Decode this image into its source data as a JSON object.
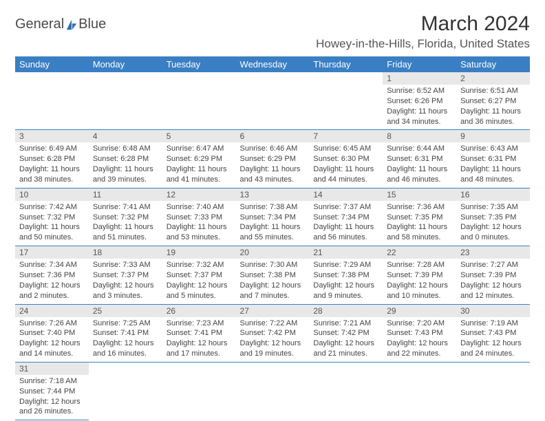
{
  "logo": {
    "text1": "General",
    "text2": "Blue",
    "sail_color": "#2f6fb3"
  },
  "title": "March 2024",
  "location": "Howey-in-the-Hills, Florida, United States",
  "colors": {
    "header_bg": "#3a7fc4",
    "header_fg": "#ffffff",
    "daynum_bg": "#e8e8e8",
    "rule": "#3a7fc4"
  },
  "weekdays": [
    "Sunday",
    "Monday",
    "Tuesday",
    "Wednesday",
    "Thursday",
    "Friday",
    "Saturday"
  ],
  "grid_start_weekday": 5,
  "days": [
    {
      "n": 1,
      "sr": "6:52 AM",
      "ss": "6:26 PM",
      "dl": "11 hours and 34 minutes."
    },
    {
      "n": 2,
      "sr": "6:51 AM",
      "ss": "6:27 PM",
      "dl": "11 hours and 36 minutes."
    },
    {
      "n": 3,
      "sr": "6:49 AM",
      "ss": "6:28 PM",
      "dl": "11 hours and 38 minutes."
    },
    {
      "n": 4,
      "sr": "6:48 AM",
      "ss": "6:28 PM",
      "dl": "11 hours and 39 minutes."
    },
    {
      "n": 5,
      "sr": "6:47 AM",
      "ss": "6:29 PM",
      "dl": "11 hours and 41 minutes."
    },
    {
      "n": 6,
      "sr": "6:46 AM",
      "ss": "6:29 PM",
      "dl": "11 hours and 43 minutes."
    },
    {
      "n": 7,
      "sr": "6:45 AM",
      "ss": "6:30 PM",
      "dl": "11 hours and 44 minutes."
    },
    {
      "n": 8,
      "sr": "6:44 AM",
      "ss": "6:31 PM",
      "dl": "11 hours and 46 minutes."
    },
    {
      "n": 9,
      "sr": "6:43 AM",
      "ss": "6:31 PM",
      "dl": "11 hours and 48 minutes."
    },
    {
      "n": 10,
      "sr": "7:42 AM",
      "ss": "7:32 PM",
      "dl": "11 hours and 50 minutes."
    },
    {
      "n": 11,
      "sr": "7:41 AM",
      "ss": "7:32 PM",
      "dl": "11 hours and 51 minutes."
    },
    {
      "n": 12,
      "sr": "7:40 AM",
      "ss": "7:33 PM",
      "dl": "11 hours and 53 minutes."
    },
    {
      "n": 13,
      "sr": "7:38 AM",
      "ss": "7:34 PM",
      "dl": "11 hours and 55 minutes."
    },
    {
      "n": 14,
      "sr": "7:37 AM",
      "ss": "7:34 PM",
      "dl": "11 hours and 56 minutes."
    },
    {
      "n": 15,
      "sr": "7:36 AM",
      "ss": "7:35 PM",
      "dl": "11 hours and 58 minutes."
    },
    {
      "n": 16,
      "sr": "7:35 AM",
      "ss": "7:35 PM",
      "dl": "12 hours and 0 minutes."
    },
    {
      "n": 17,
      "sr": "7:34 AM",
      "ss": "7:36 PM",
      "dl": "12 hours and 2 minutes."
    },
    {
      "n": 18,
      "sr": "7:33 AM",
      "ss": "7:37 PM",
      "dl": "12 hours and 3 minutes."
    },
    {
      "n": 19,
      "sr": "7:32 AM",
      "ss": "7:37 PM",
      "dl": "12 hours and 5 minutes."
    },
    {
      "n": 20,
      "sr": "7:30 AM",
      "ss": "7:38 PM",
      "dl": "12 hours and 7 minutes."
    },
    {
      "n": 21,
      "sr": "7:29 AM",
      "ss": "7:38 PM",
      "dl": "12 hours and 9 minutes."
    },
    {
      "n": 22,
      "sr": "7:28 AM",
      "ss": "7:39 PM",
      "dl": "12 hours and 10 minutes."
    },
    {
      "n": 23,
      "sr": "7:27 AM",
      "ss": "7:39 PM",
      "dl": "12 hours and 12 minutes."
    },
    {
      "n": 24,
      "sr": "7:26 AM",
      "ss": "7:40 PM",
      "dl": "12 hours and 14 minutes."
    },
    {
      "n": 25,
      "sr": "7:25 AM",
      "ss": "7:41 PM",
      "dl": "12 hours and 16 minutes."
    },
    {
      "n": 26,
      "sr": "7:23 AM",
      "ss": "7:41 PM",
      "dl": "12 hours and 17 minutes."
    },
    {
      "n": 27,
      "sr": "7:22 AM",
      "ss": "7:42 PM",
      "dl": "12 hours and 19 minutes."
    },
    {
      "n": 28,
      "sr": "7:21 AM",
      "ss": "7:42 PM",
      "dl": "12 hours and 21 minutes."
    },
    {
      "n": 29,
      "sr": "7:20 AM",
      "ss": "7:43 PM",
      "dl": "12 hours and 22 minutes."
    },
    {
      "n": 30,
      "sr": "7:19 AM",
      "ss": "7:43 PM",
      "dl": "12 hours and 24 minutes."
    },
    {
      "n": 31,
      "sr": "7:18 AM",
      "ss": "7:44 PM",
      "dl": "12 hours and 26 minutes."
    }
  ],
  "labels": {
    "sunrise": "Sunrise:",
    "sunset": "Sunset:",
    "daylight": "Daylight:"
  }
}
